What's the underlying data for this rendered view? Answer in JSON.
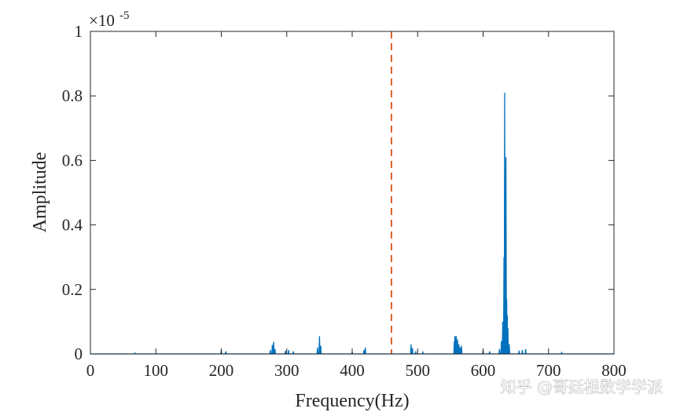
{
  "chart_data": {
    "type": "line",
    "xlabel": "Frequency(Hz)",
    "ylabel": "Amplitude",
    "y_exponent_label": "×10",
    "y_exponent_power": "-5",
    "xlim": [
      0,
      800
    ],
    "ylim": [
      0,
      1
    ],
    "x_ticks": [
      "0",
      "100",
      "200",
      "300",
      "400",
      "500",
      "600",
      "700",
      "800"
    ],
    "y_ticks": [
      "0",
      "0.2",
      "0.4",
      "0.6",
      "0.8",
      "1"
    ],
    "grid": false,
    "series_color": "#0072BD",
    "vline": {
      "x": 460,
      "color": "#D95319",
      "style": "dashed"
    },
    "series": [
      {
        "peaks": [
          [
            68,
            0.003
          ],
          [
            200,
            0.012
          ],
          [
            207,
            0.008
          ],
          [
            275,
            0.012
          ],
          [
            278,
            0.028
          ],
          [
            280,
            0.038
          ],
          [
            282,
            0.015
          ],
          [
            298,
            0.01
          ],
          [
            303,
            0.012
          ],
          [
            310,
            0.008
          ],
          [
            347,
            0.02
          ],
          [
            350,
            0.055
          ],
          [
            352,
            0.025
          ],
          [
            400,
            0.006
          ],
          [
            418,
            0.012
          ],
          [
            420,
            0.02
          ],
          [
            490,
            0.03
          ],
          [
            492,
            0.018
          ],
          [
            497,
            0.008
          ],
          [
            508,
            0.005
          ],
          [
            556,
            0.04
          ],
          [
            557,
            0.056
          ],
          [
            558,
            0.05
          ],
          [
            559,
            0.055
          ],
          [
            560,
            0.038
          ],
          [
            561,
            0.045
          ],
          [
            563,
            0.03
          ],
          [
            565,
            0.02
          ],
          [
            567,
            0.025
          ],
          [
            600,
            0.01
          ],
          [
            610,
            0.008
          ],
          [
            625,
            0.015
          ],
          [
            628,
            0.04
          ],
          [
            630,
            0.1
          ],
          [
            632,
            0.3
          ],
          [
            633,
            0.81
          ],
          [
            634,
            0.4
          ],
          [
            635,
            0.61
          ],
          [
            636,
            0.17
          ],
          [
            637,
            0.12
          ],
          [
            638,
            0.08
          ],
          [
            640,
            0.03
          ],
          [
            655,
            0.01
          ],
          [
            660,
            0.012
          ],
          [
            665,
            0.015
          ],
          [
            720,
            0.004
          ]
        ]
      }
    ]
  },
  "watermark": "知乎 @哥廷根数学学派"
}
